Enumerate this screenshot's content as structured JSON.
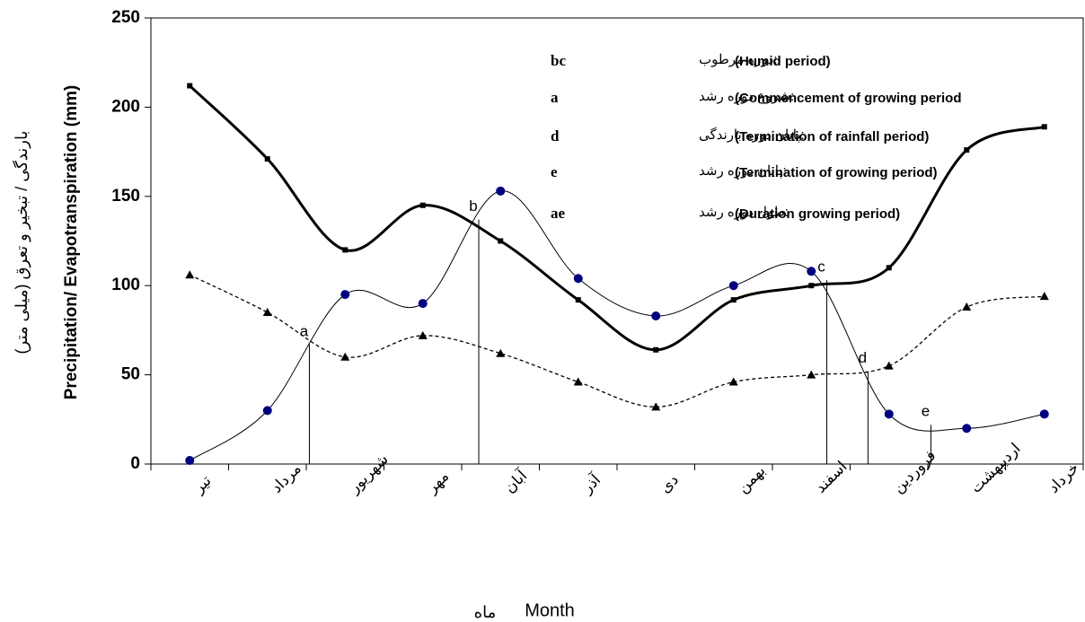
{
  "chart_data": {
    "type": "line",
    "y_label": "Precipitation/ Evapotranspiration (mm)",
    "y_label_persian": "بارندگی / تبخیر و تعرق (میلی متر)",
    "x_label": "Month",
    "x_label_persian": "ماه",
    "categories": [
      "تیر",
      "مرداد",
      "شهریور",
      "مهر",
      "آبان",
      "آذر",
      "دی",
      "بهمن",
      "اسفند",
      "فروردین",
      "اردیبهشت",
      "خرداد"
    ],
    "series": [
      {
        "color": "#000000",
        "marker": "square",
        "style": "thick",
        "values": [
          212,
          171,
          120,
          145,
          125,
          92,
          64,
          92,
          100,
          110,
          176,
          189
        ]
      },
      {
        "color": "#000080",
        "marker": "circle",
        "style": "thin",
        "values": [
          2,
          30,
          95,
          90,
          153,
          104,
          83,
          100,
          108,
          28,
          20,
          28
        ]
      },
      {
        "color": "#000000",
        "marker": "triangle",
        "style": "dashed",
        "values": [
          106,
          85,
          60,
          72,
          62,
          46,
          32,
          46,
          50,
          55,
          88,
          94
        ]
      }
    ],
    "ylim": [
      0,
      250
    ],
    "yticks": [
      0,
      50,
      100,
      150,
      200,
      250
    ],
    "annotations": [
      {
        "label": "a",
        "x": 1.54,
        "y": 67
      },
      {
        "label": "b",
        "x": 3.72,
        "y": 137
      },
      {
        "label": "c",
        "x": 8.2,
        "y": 103
      },
      {
        "label": "d",
        "x": 8.73,
        "y": 52
      },
      {
        "label": "e",
        "x": 9.54,
        "y": 22
      }
    ],
    "notes": [
      {
        "key": "bc",
        "persian": ":دوره مرطوب",
        "english": "(Humid period)"
      },
      {
        "key": "a",
        "persian": ":شروع دوره رشد",
        "english": "(Commencement of growing period"
      },
      {
        "key": "d",
        "persian": ":پایان دوره بارندگی",
        "english": "(Termination of rainfall period)"
      },
      {
        "key": "e",
        "persian": ":پایان دوره رشد",
        "english": "(Termination of growing period)"
      },
      {
        "key": "ae",
        "persian": ":طول دوره رشد",
        "english": "(Duration growing period)"
      }
    ]
  }
}
